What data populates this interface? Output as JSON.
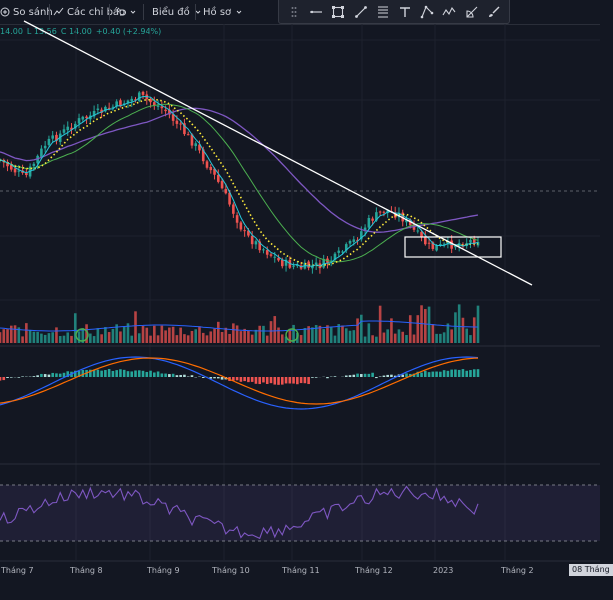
{
  "toolbar": {
    "compare": "So sánh",
    "indicators": "Các chỉ báo",
    "chart_type": "Biểu đồ",
    "template": "Hồ sơ"
  },
  "drawing_tools": [
    "crosshair-icon",
    "horizontal-line-icon",
    "rectangle-icon",
    "trend-line-icon",
    "path-icon",
    "text-icon",
    "fib-icon",
    "pattern-icon",
    "ruler-icon",
    "brush-icon"
  ],
  "legend": {
    "high": "14.00",
    "low": "L 13.56",
    "close": "C 14.00",
    "change": "+0.40 (+2.94%)"
  },
  "x_axis": {
    "labels": [
      "Tháng 7",
      "Tháng 8",
      "Tháng 9",
      "Tháng 10",
      "Tháng 11",
      "Tháng 12",
      "2023",
      "Tháng 2"
    ],
    "crosshair_date": "08 Tháng"
  },
  "colors": {
    "background": "#131722",
    "up": "#26a69a",
    "down": "#ef5350",
    "ma_fast": "#26c6da",
    "ma_dotted": "#ffeb3b",
    "ma_mid": "#4caf50",
    "ma_slow": "#7e57c2",
    "macd": "#2962ff",
    "signal": "#ff6d00",
    "rsi": "#7e57c2"
  },
  "chart_data": {
    "type": "candlestick",
    "x_range": [
      "Tháng 7",
      "Tháng 2"
    ],
    "price_swings": [
      {
        "period": "Tháng 7",
        "close": 12.8
      },
      {
        "period": "Tháng 8",
        "close": 15.3
      },
      {
        "period": "Tháng 9",
        "close": 16.4
      },
      {
        "period": "Tháng 10",
        "close": 11.5
      },
      {
        "period": "Tháng 11",
        "close": 10.6
      },
      {
        "period": "Tháng 12",
        "close": 14.3
      },
      {
        "period": "2023",
        "close": 13.5
      },
      {
        "period": "end",
        "close": 14.0
      }
    ],
    "last_close": 14.0,
    "indicators": [
      "MA (fast)",
      "MA (dotted)",
      "MA (mid)",
      "MA (slow)",
      "Volume",
      "MACD",
      "RSI"
    ],
    "annotations": [
      "descending trend line",
      "consolidation box"
    ]
  }
}
